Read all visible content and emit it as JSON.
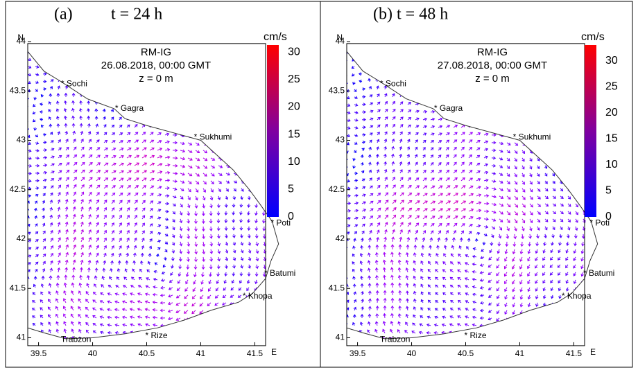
{
  "panels": [
    {
      "label": "(a)",
      "time": "t = 24 h",
      "model": "RM-IG",
      "date": "26.08.2018, 00:00 GMT",
      "depth": "z = 0 m",
      "unit": "cm/s",
      "colorbar_ticks": [
        0,
        5,
        10,
        15,
        20,
        25,
        30
      ],
      "lat_ticks": [
        41,
        41.5,
        42,
        42.5,
        43,
        43.5,
        44
      ],
      "lon_ticks": [
        39.5,
        40,
        40.5,
        41,
        41.5
      ],
      "north": "N",
      "east": "E",
      "cities": [
        "* Sochi",
        "* Gagra",
        "* Sukhumi",
        "* Poti",
        "* Batumi",
        "* Khopa",
        "* Rize",
        "Trabzon"
      ]
    },
    {
      "label": "(b)",
      "time": "t = 48 h",
      "model": "RM-IG",
      "date": "27.08.2018, 00:00 GMT",
      "depth": "z = 0 m",
      "unit": "cm/s",
      "colorbar_ticks": [
        0,
        5,
        10,
        15,
        20,
        25,
        30
      ],
      "lat_ticks": [
        41,
        41.5,
        42,
        42.5,
        43,
        43.5,
        44
      ],
      "lon_ticks": [
        39.5,
        40,
        40.5,
        41,
        41.5
      ],
      "north": "N",
      "east": "E",
      "cities": [
        "* Sochi",
        "* Gagra",
        "* Sukhumi",
        "* Poti",
        "* Batumi",
        "* Khopa",
        "* Rize",
        "Trabzon"
      ]
    }
  ]
}
